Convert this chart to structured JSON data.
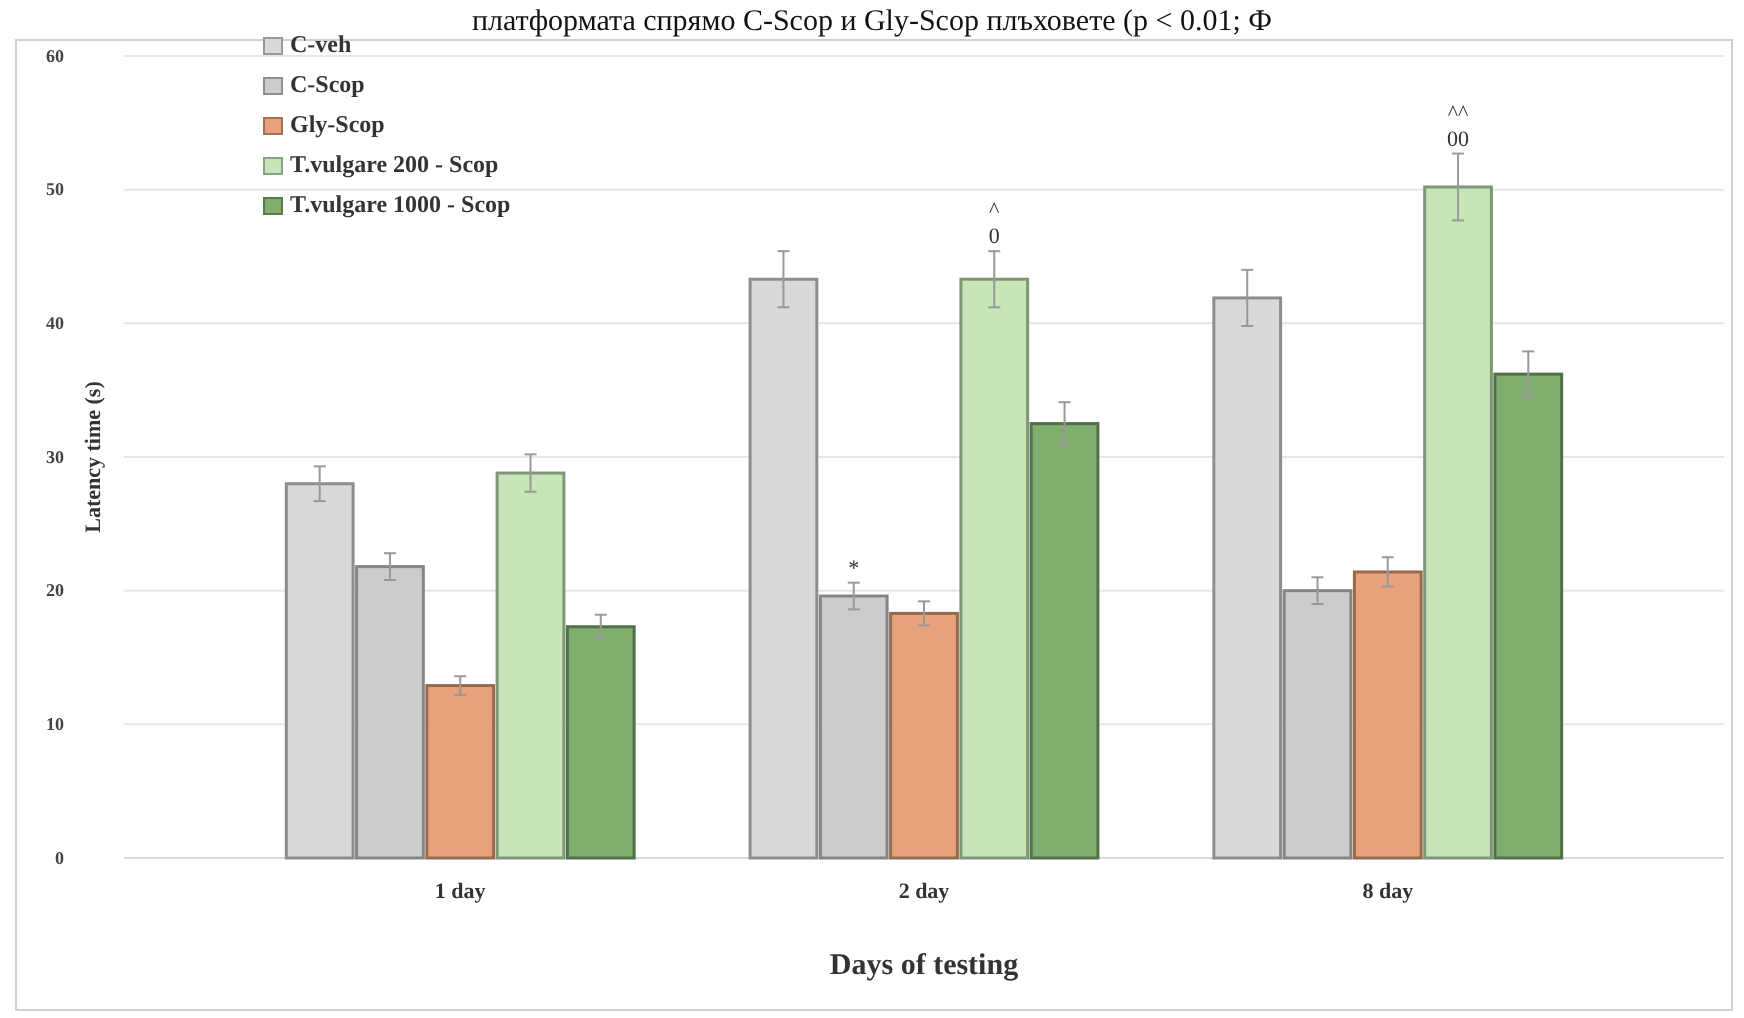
{
  "chart_data": {
    "type": "bar",
    "xlabel": "Days of testing",
    "ylabel": "Latency time (s)",
    "categories": [
      "1 day",
      "2 day",
      "8 day"
    ],
    "series": [
      {
        "name": "C-veh",
        "color": "#d9d9d9",
        "values": [
          28,
          43.3,
          41.9
        ],
        "errors": [
          1.3,
          2.1,
          2.1
        ]
      },
      {
        "name": "C-Scop",
        "color": "#cccccc",
        "values": [
          21.8,
          19.6,
          20
        ],
        "errors": [
          1,
          1,
          1
        ]
      },
      {
        "name": "Gly-Scop",
        "color": "#e8a27a",
        "values": [
          12.9,
          18.3,
          21.4
        ],
        "errors": [
          0.7,
          0.9,
          1.1
        ]
      },
      {
        "name": "T.vulgare 200 - Scop",
        "color": "#c6e6b8",
        "values": [
          28.8,
          43.3,
          50.2
        ],
        "errors": [
          1.4,
          2.1,
          2.5
        ]
      },
      {
        "name": "T.vulgare 1000 - Scop",
        "color": "#7fae6e",
        "values": [
          17.3,
          32.5,
          36.2
        ],
        "errors": [
          0.9,
          1.6,
          1.7
        ]
      }
    ],
    "ylim": [
      0,
      60
    ],
    "yticks": [
      0,
      10,
      20,
      30,
      40,
      50,
      60
    ],
    "grid": "y",
    "legend": "top left",
    "annotations": [
      "платформата спрямо C-Scop и Gly-Scop плъховете (p < 0.01; Ф",
      "*",
      "0",
      "^",
      "00",
      "^^"
    ]
  }
}
